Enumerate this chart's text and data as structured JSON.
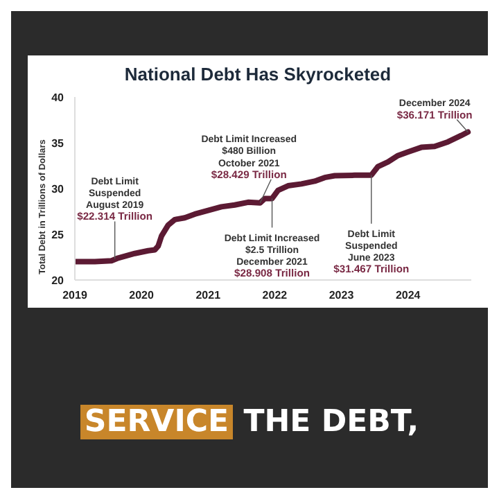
{
  "chart_data": {
    "type": "line",
    "title": "National Debt Has Skyrocketed",
    "ylabel": "Total Debt in Trillions of Dollars",
    "x": [
      2019.0,
      2019.3,
      2019.55,
      2019.65,
      2019.9,
      2020.1,
      2020.2,
      2020.25,
      2020.3,
      2020.4,
      2020.5,
      2020.65,
      2020.8,
      2021.0,
      2021.2,
      2021.4,
      2021.6,
      2021.78,
      2021.85,
      2021.96,
      2022.05,
      2022.2,
      2022.4,
      2022.6,
      2022.75,
      2022.9,
      2023.2,
      2023.45,
      2023.55,
      2023.7,
      2023.85,
      2024.0,
      2024.2,
      2024.4,
      2024.6,
      2024.8,
      2024.9
    ],
    "series": [
      {
        "color": "#5c1a33",
        "values": [
          22.0,
          22.0,
          22.1,
          22.4,
          22.9,
          23.2,
          23.3,
          23.7,
          24.8,
          26.0,
          26.6,
          26.8,
          27.2,
          27.6,
          28.0,
          28.2,
          28.5,
          28.429,
          28.9,
          28.908,
          29.8,
          30.3,
          30.5,
          30.8,
          31.2,
          31.4,
          31.45,
          31.467,
          32.4,
          32.9,
          33.6,
          34.0,
          34.5,
          34.6,
          35.1,
          35.8,
          36.171
        ]
      }
    ],
    "xlim": [
      2019,
      2024.95
    ],
    "xticks": [
      2019,
      2020,
      2021,
      2022,
      2023,
      2024
    ],
    "ylim": [
      20,
      40
    ],
    "yticks": [
      20,
      25,
      30,
      35,
      40
    ],
    "marker": "none",
    "line_style": "solid",
    "annotations": [
      {
        "text": "Debt Limit\nSuspended\nAugust 2019\n$22.314 Trillion",
        "x": 2019.6,
        "y": 22.314
      },
      {
        "text": "Debt Limit Increased\n$480 Billion\nOctober 2021\n$28.429 Trillion",
        "x": 2021.78,
        "y": 28.429
      },
      {
        "text": "Debt Limit Increased\n$2.5 Trillion\nDecember 2021\n$28.908 Trillion",
        "x": 2021.96,
        "y": 28.908
      },
      {
        "text": "Debt Limit\nSuspended\nJune 2023\n$31.467 Trillion",
        "x": 2023.45,
        "y": 31.467
      },
      {
        "text": "December 2024\n$36.171 Trillion",
        "x": 2024.9,
        "y": 36.171
      },
      "SERVICE THE DEBT,"
    ]
  }
}
